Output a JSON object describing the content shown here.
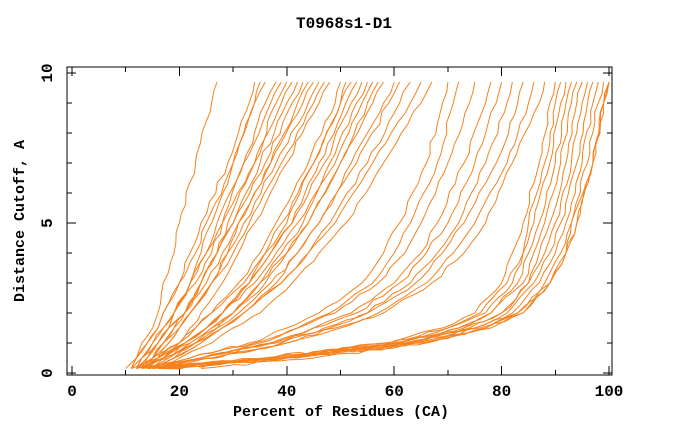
{
  "title": "T0968s1-D1",
  "colors": {
    "line": "#f5821f",
    "axis": "#000000",
    "background": "#ffffff"
  },
  "chart_data": {
    "type": "line",
    "title": "T0968s1-D1",
    "xlabel": "Percent of Residues (CA)",
    "ylabel": "Distance Cutoff, A",
    "xlim": [
      0,
      100
    ],
    "ylim": [
      0,
      10
    ],
    "grid": false,
    "legend": false,
    "frame": "box",
    "ticks": "inward",
    "x_major_ticks": [
      0,
      20,
      40,
      60,
      80,
      100
    ],
    "x_major_labels": [
      "0",
      "20",
      "40",
      "60",
      "80",
      "100"
    ],
    "x_minor_ticks": [
      10,
      30,
      50,
      70,
      90
    ],
    "y_major_ticks": [
      0,
      5,
      10
    ],
    "y_major_labels": [
      "0",
      "5",
      "10"
    ],
    "y_minor_ticks": [
      1,
      2,
      3,
      4,
      6,
      7,
      8,
      9
    ],
    "series_color": "#f5821f",
    "cutoffs": [
      0.15,
      0.5,
      1,
      1.5,
      2,
      3,
      4,
      5,
      7,
      9,
      9.7
    ],
    "series": [
      [
        11,
        12,
        13,
        15,
        16,
        17,
        19,
        20,
        23,
        26,
        27
      ],
      [
        11,
        12,
        14,
        16,
        17,
        20,
        22,
        24,
        29,
        33,
        34
      ],
      [
        13,
        14,
        16,
        18,
        19,
        22,
        24,
        26,
        30,
        34,
        35
      ],
      [
        10,
        12,
        14,
        16,
        17,
        20,
        23,
        25,
        30,
        34,
        36
      ],
      [
        12,
        14,
        16,
        18,
        19,
        22,
        25,
        27,
        32,
        36,
        38
      ],
      [
        12,
        13,
        15,
        17,
        19,
        22,
        25,
        28,
        32,
        37,
        39
      ],
      [
        14,
        15,
        17,
        19,
        21,
        24,
        27,
        29,
        34,
        38,
        40
      ],
      [
        11,
        13,
        15,
        17,
        19,
        23,
        26,
        28,
        34,
        39,
        41
      ],
      [
        13,
        15,
        17,
        19,
        21,
        24,
        27,
        30,
        35,
        40,
        42
      ],
      [
        12,
        14,
        16,
        18,
        21,
        24,
        27,
        30,
        36,
        41,
        43
      ],
      [
        14,
        16,
        18,
        20,
        22,
        26,
        29,
        31,
        37,
        42,
        44
      ],
      [
        12,
        13,
        16,
        18,
        21,
        25,
        28,
        31,
        37,
        43,
        45
      ],
      [
        13,
        15,
        18,
        20,
        22,
        26,
        29,
        32,
        38,
        44,
        46
      ],
      [
        13,
        15,
        17,
        20,
        22,
        26,
        30,
        33,
        39,
        45,
        47
      ],
      [
        15,
        17,
        20,
        22,
        24,
        28,
        31,
        34,
        40,
        46,
        48
      ],
      [
        12,
        16,
        20,
        23,
        26,
        31,
        35,
        38,
        44,
        49,
        50
      ],
      [
        14,
        17,
        21,
        25,
        28,
        33,
        36,
        40,
        45,
        50,
        51
      ],
      [
        11,
        15,
        20,
        23,
        26,
        32,
        36,
        39,
        45,
        50,
        52
      ],
      [
        13,
        17,
        21,
        25,
        28,
        33,
        37,
        41,
        46,
        51,
        53
      ],
      [
        13,
        16,
        21,
        25,
        28,
        33,
        37,
        41,
        47,
        52,
        54
      ],
      [
        15,
        19,
        23,
        27,
        30,
        35,
        39,
        43,
        48,
        53,
        55
      ],
      [
        12,
        16,
        21,
        25,
        28,
        34,
        38,
        42,
        49,
        54,
        56
      ],
      [
        14,
        18,
        22,
        26,
        30,
        35,
        40,
        44,
        50,
        55,
        57
      ],
      [
        13,
        17,
        22,
        26,
        30,
        36,
        40,
        44,
        50,
        56,
        58
      ],
      [
        15,
        19,
        24,
        28,
        32,
        38,
        42,
        46,
        52,
        58,
        60
      ],
      [
        13,
        18,
        23,
        27,
        31,
        37,
        42,
        46,
        53,
        59,
        61
      ],
      [
        14,
        19,
        24,
        28,
        32,
        39,
        44,
        48,
        55,
        61,
        63
      ],
      [
        13,
        17,
        23,
        28,
        32,
        39,
        44,
        49,
        56,
        63,
        65
      ],
      [
        16,
        20,
        26,
        30,
        35,
        41,
        46,
        51,
        58,
        65,
        67
      ],
      [
        13,
        22,
        33,
        40,
        46,
        54,
        58,
        61,
        66,
        69,
        70
      ],
      [
        15,
        24,
        35,
        42,
        48,
        56,
        60,
        63,
        68,
        71,
        72
      ],
      [
        12,
        22,
        34,
        42,
        49,
        57,
        62,
        65,
        70,
        74,
        75
      ],
      [
        14,
        24,
        37,
        45,
        52,
        60,
        65,
        68,
        73,
        77,
        78
      ],
      [
        14,
        24,
        37,
        45,
        53,
        61,
        66,
        70,
        75,
        79,
        80
      ],
      [
        17,
        27,
        39,
        48,
        55,
        63,
        68,
        72,
        77,
        81,
        82
      ],
      [
        13,
        24,
        38,
        47,
        55,
        64,
        69,
        73,
        79,
        83,
        84
      ],
      [
        15,
        26,
        40,
        49,
        57,
        66,
        71,
        75,
        81,
        85,
        86
      ],
      [
        14,
        26,
        40,
        50,
        58,
        67,
        73,
        77,
        82,
        87,
        88
      ],
      [
        14,
        36,
        58,
        69,
        75,
        80,
        82,
        84,
        87,
        89,
        90
      ],
      [
        16,
        38,
        60,
        70,
        76,
        81,
        84,
        85,
        88,
        90,
        91
      ],
      [
        14,
        36,
        59,
        70,
        77,
        82,
        84,
        86,
        89,
        91,
        92
      ],
      [
        16,
        38,
        61,
        72,
        78,
        83,
        85,
        87,
        90,
        92,
        93
      ],
      [
        15,
        37,
        61,
        72,
        78,
        84,
        86,
        88,
        91,
        93,
        94
      ],
      [
        17,
        39,
        62,
        74,
        80,
        85,
        87,
        89,
        92,
        94,
        95
      ],
      [
        14,
        38,
        62,
        73,
        80,
        85,
        88,
        90,
        93,
        95,
        96
      ],
      [
        16,
        39,
        63,
        75,
        81,
        86,
        89,
        91,
        94,
        96,
        97
      ],
      [
        15,
        39,
        63,
        75,
        82,
        87,
        90,
        92,
        95,
        97,
        98
      ],
      [
        17,
        40,
        65,
        77,
        83,
        88,
        91,
        93,
        96,
        98,
        99
      ],
      [
        14,
        39,
        64,
        76,
        83,
        89,
        92,
        93,
        97,
        99,
        100
      ],
      [
        18,
        42,
        66,
        78,
        84,
        89,
        92,
        94,
        97,
        99,
        100
      ],
      [
        24,
        45,
        66,
        77,
        84,
        89,
        92,
        94,
        97,
        99,
        100
      ]
    ]
  }
}
